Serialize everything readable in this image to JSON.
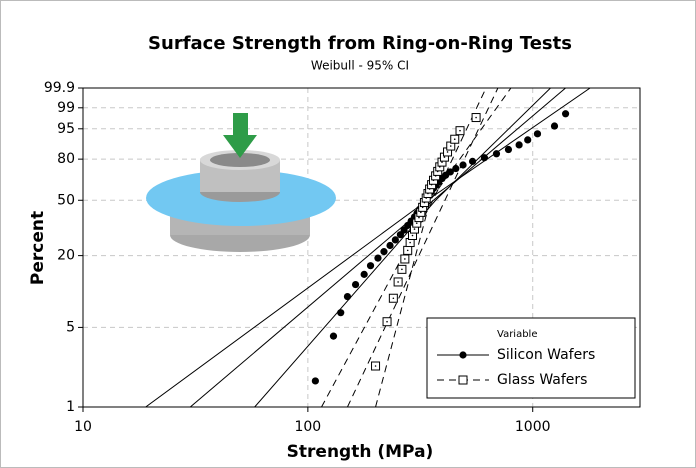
{
  "chart_data": {
    "type": "probability",
    "title": "Surface Strength from Ring-on-Ring Tests",
    "subtitle": "Weibull - 95% CI",
    "x_label": "Strength (MPa)",
    "y_label": "Percent",
    "x_scale": "log",
    "y_scale": "weibull",
    "xlim": [
      10,
      3000
    ],
    "ylim": [
      1,
      99.9
    ],
    "xticks": [
      10,
      100,
      1000
    ],
    "yticks": [
      1,
      5,
      20,
      50,
      80,
      95,
      99,
      99.9
    ],
    "grid": true,
    "legend_title": "Variable",
    "legend_position": "lower right",
    "series": [
      {
        "name": "Silicon Wafers",
        "color": "#000000",
        "marker": "circle",
        "line_style": "solid",
        "x": [
          108,
          130,
          140,
          150,
          163,
          178,
          190,
          205,
          218,
          232,
          245,
          258,
          268,
          278,
          288,
          298,
          306,
          314,
          322,
          330,
          338,
          346,
          354,
          362,
          372,
          382,
          395,
          410,
          430,
          455,
          490,
          540,
          610,
          690,
          780,
          870,
          950,
          1050,
          1250,
          1400
        ],
        "values": [
          1.7,
          4.2,
          6.7,
          9.2,
          11.6,
          14.1,
          16.6,
          19.1,
          21.5,
          24.0,
          26.5,
          29.0,
          31.4,
          33.9,
          36.4,
          38.9,
          41.3,
          43.8,
          46.3,
          48.8,
          51.2,
          53.7,
          56.2,
          58.7,
          61.1,
          63.6,
          66.1,
          68.6,
          71.0,
          73.5,
          76.0,
          78.5,
          80.9,
          83.4,
          85.9,
          88.4,
          90.8,
          93.3,
          95.8,
          98.3
        ],
        "fit": {
          "x": [
            30,
            1400
          ],
          "values": [
            1,
            99.9
          ]
        },
        "ci_lower": {
          "x": [
            19,
            340,
            1800
          ],
          "values": [
            1,
            50,
            99.9
          ]
        },
        "ci_upper": {
          "x": [
            58,
            370,
            1200
          ],
          "values": [
            1,
            50,
            99.9
          ]
        }
      },
      {
        "name": "Glass Wafers",
        "color": "#000000",
        "marker": "square",
        "line_style": "dashed",
        "x": [
          200,
          225,
          240,
          252,
          262,
          270,
          278,
          285,
          292,
          298,
          305,
          312,
          318,
          324,
          330,
          336,
          342,
          348,
          355,
          362,
          370,
          378,
          386,
          395,
          405,
          418,
          432,
          450,
          475,
          560
        ],
        "values": [
          2.3,
          5.6,
          8.9,
          12.2,
          15.5,
          18.8,
          22.0,
          25.3,
          28.6,
          31.9,
          35.2,
          38.5,
          41.8,
          45.1,
          48.4,
          51.6,
          54.9,
          58.2,
          61.5,
          64.8,
          68.1,
          71.4,
          74.7,
          78.0,
          81.3,
          84.5,
          87.8,
          91.1,
          94.4,
          97.7
        ],
        "fit": {
          "x": [
            150,
            700
          ],
          "values": [
            1,
            99.9
          ]
        },
        "ci_lower": {
          "x": [
            115,
            360,
            620
          ],
          "values": [
            1,
            50,
            99.9
          ]
        },
        "ci_upper": {
          "x": [
            200,
            350,
            800
          ],
          "values": [
            1,
            50,
            99.9
          ]
        }
      }
    ]
  }
}
